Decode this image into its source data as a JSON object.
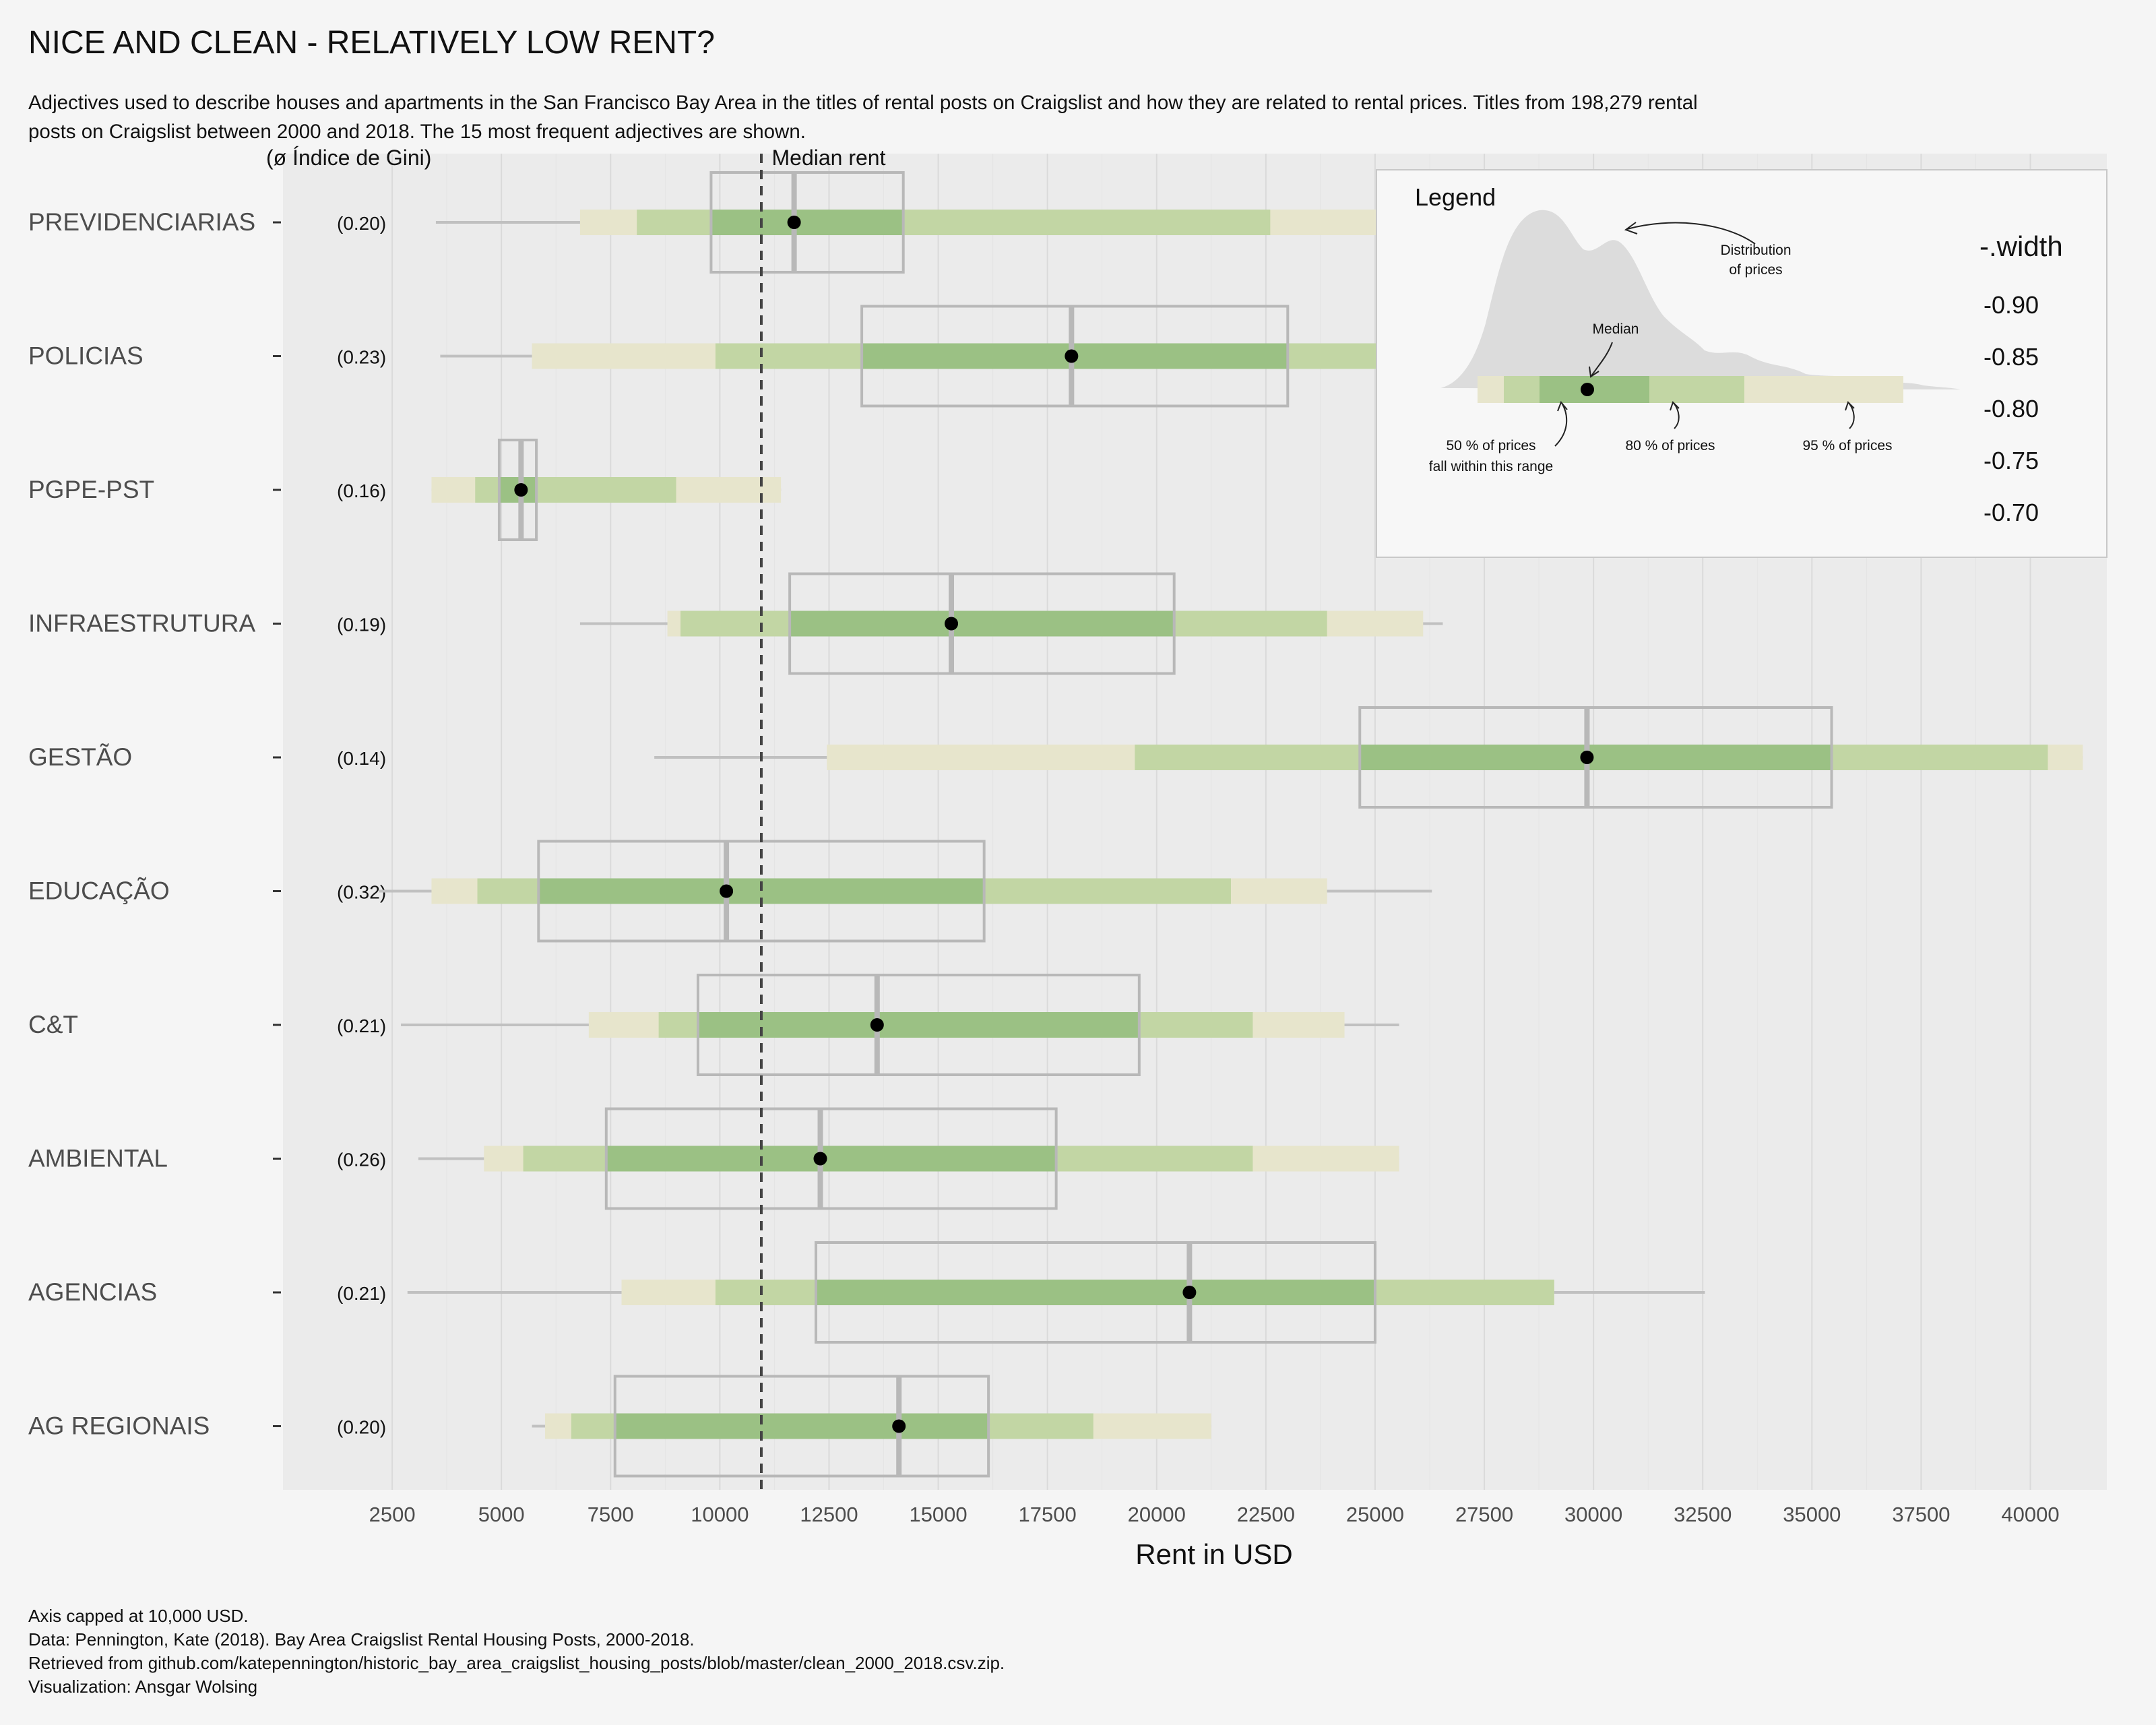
{
  "chart_data": {
    "type": "interval-box",
    "title": "NICE AND CLEAN - RELATIVELY LOW RENT?",
    "subtitle_lines": [
      "Adjectives used to describe houses and apartments in the San Francisco Bay Area in the titles of rental posts on Craigslist and how they are related to rental prices. Titles from 198,279 rental",
      "posts on Craigslist between 2000 and 2018. The 15 most frequent adjectives are shown."
    ],
    "gini_header": "(ø Índice de Gini)",
    "median_label": "Median rent",
    "median_rent": 10950,
    "xlabel": "Rent in USD",
    "xlim": [
      0,
      41750
    ],
    "x_ticks": [
      2500,
      5000,
      7500,
      10000,
      12500,
      15000,
      17500,
      20000,
      22500,
      25000,
      27500,
      30000,
      32500,
      35000,
      37500,
      40000
    ],
    "x_tick_labels": [
      "2500",
      "5000",
      "7500",
      "10000",
      "12500",
      "15000",
      "17500",
      "20000",
      "22500",
      "25000",
      "27500",
      "30000",
      "32500",
      "35000",
      "37500",
      "40000"
    ],
    "categories": [
      {
        "name": "PREVIDENCIARIAS",
        "gini": "(0.20)",
        "median": 11700,
        "whisker": [
          3500,
          26000
        ],
        "i95": [
          6800,
          26000
        ],
        "i80": [
          8100,
          22600
        ],
        "i50": [
          9800,
          14200
        ],
        "box": [
          9800,
          14200
        ]
      },
      {
        "name": "POLICIAS",
        "gini": "(0.23)",
        "median": 18050,
        "whisker": [
          3600,
          26000
        ],
        "i95": [
          5700,
          26000
        ],
        "i80": [
          9900,
          26000
        ],
        "i50": [
          13250,
          23000
        ],
        "box": [
          13250,
          23000
        ]
      },
      {
        "name": "PGPE-PST",
        "gini": "(0.16)",
        "median": 5450,
        "whisker": [
          3400,
          11400
        ],
        "i95": [
          3400,
          11400
        ],
        "i80": [
          4400,
          9000
        ],
        "i50": [
          4950,
          5800
        ],
        "box": [
          4950,
          5800
        ]
      },
      {
        "name": "INFRAESTRUTURA",
        "gini": "(0.19)",
        "median": 15300,
        "whisker": [
          6800,
          26550
        ],
        "i95": [
          8800,
          26100
        ],
        "i80": [
          9100,
          23900
        ],
        "i50": [
          11600,
          20400
        ],
        "box": [
          11600,
          20400
        ]
      },
      {
        "name": "GESTÃO",
        "gini": "(0.14)",
        "median": 29850,
        "whisker": [
          8500,
          41200
        ],
        "i95": [
          12450,
          41200
        ],
        "i80": [
          19500,
          40400
        ],
        "i50": [
          24650,
          35450
        ],
        "box": [
          24650,
          35450
        ]
      },
      {
        "name": "EDUCAÇÃO",
        "gini": "(0.32)",
        "median": 10150,
        "whisker": [
          2200,
          26300
        ],
        "i95": [
          3400,
          23900
        ],
        "i80": [
          4450,
          21700
        ],
        "i50": [
          5850,
          16050
        ],
        "box": [
          5850,
          16050
        ]
      },
      {
        "name": "C&T",
        "gini": "(0.21)",
        "median": 13600,
        "whisker": [
          2700,
          25550
        ],
        "i95": [
          7000,
          24300
        ],
        "i80": [
          8600,
          22200
        ],
        "i50": [
          9500,
          19600
        ],
        "box": [
          9500,
          19600
        ]
      },
      {
        "name": "AMBIENTAL",
        "gini": "(0.26)",
        "median": 12300,
        "whisker": [
          3100,
          25550
        ],
        "i95": [
          4600,
          25550
        ],
        "i80": [
          5500,
          22200
        ],
        "i50": [
          7400,
          17700
        ],
        "box": [
          7400,
          17700
        ]
      },
      {
        "name": "AGENCIAS",
        "gini": "(0.21)",
        "median": 20750,
        "whisker": [
          2850,
          32550
        ],
        "i95": [
          7750,
          29100
        ],
        "i80": [
          9900,
          29100
        ],
        "i50": [
          12200,
          25000
        ],
        "box": [
          12200,
          25000
        ]
      },
      {
        "name": "AG REGIONAIS",
        "gini": "(0.20)",
        "median": 14100,
        "whisker": [
          5700,
          21250
        ],
        "i95": [
          6000,
          21250
        ],
        "i80": [
          6600,
          18550
        ],
        "i50": [
          7600,
          16150
        ],
        "box": [
          7600,
          16150
        ]
      }
    ],
    "colors": {
      "panel": "#ebebeb",
      "background": "#f5f5f5",
      "interval_50": "#9bc184",
      "interval_80": "#c2d6a4",
      "interval_95": "#e7e5cc",
      "box": "#b8b8b8",
      "whisker": "#c0c0c0",
      "point": "#000000"
    },
    "legend": {
      "title": "Legend",
      "distribution_label": [
        "Distribution",
        "of prices"
      ],
      "median_label": "Median",
      "range50_label": [
        "50 % of prices",
        "fall within this range"
      ],
      "range80_label": "80 % of prices",
      "range95_label": "95 % of prices",
      "width_title": "-.width",
      "width_values": [
        "-0.90",
        "-0.85",
        "-0.80",
        "-0.75",
        "-0.70"
      ]
    },
    "caption_lines": [
      "Axis capped at 10,000 USD.",
      "Data: Pennington, Kate (2018). Bay Area Craigslist Rental Housing Posts, 2000-2018.",
      "Retrieved from github.com/katepennington/historic_bay_area_craigslist_housing_posts/blob/master/clean_2000_2018.csv.zip.",
      "Visualization: Ansgar Wolsing"
    ]
  }
}
